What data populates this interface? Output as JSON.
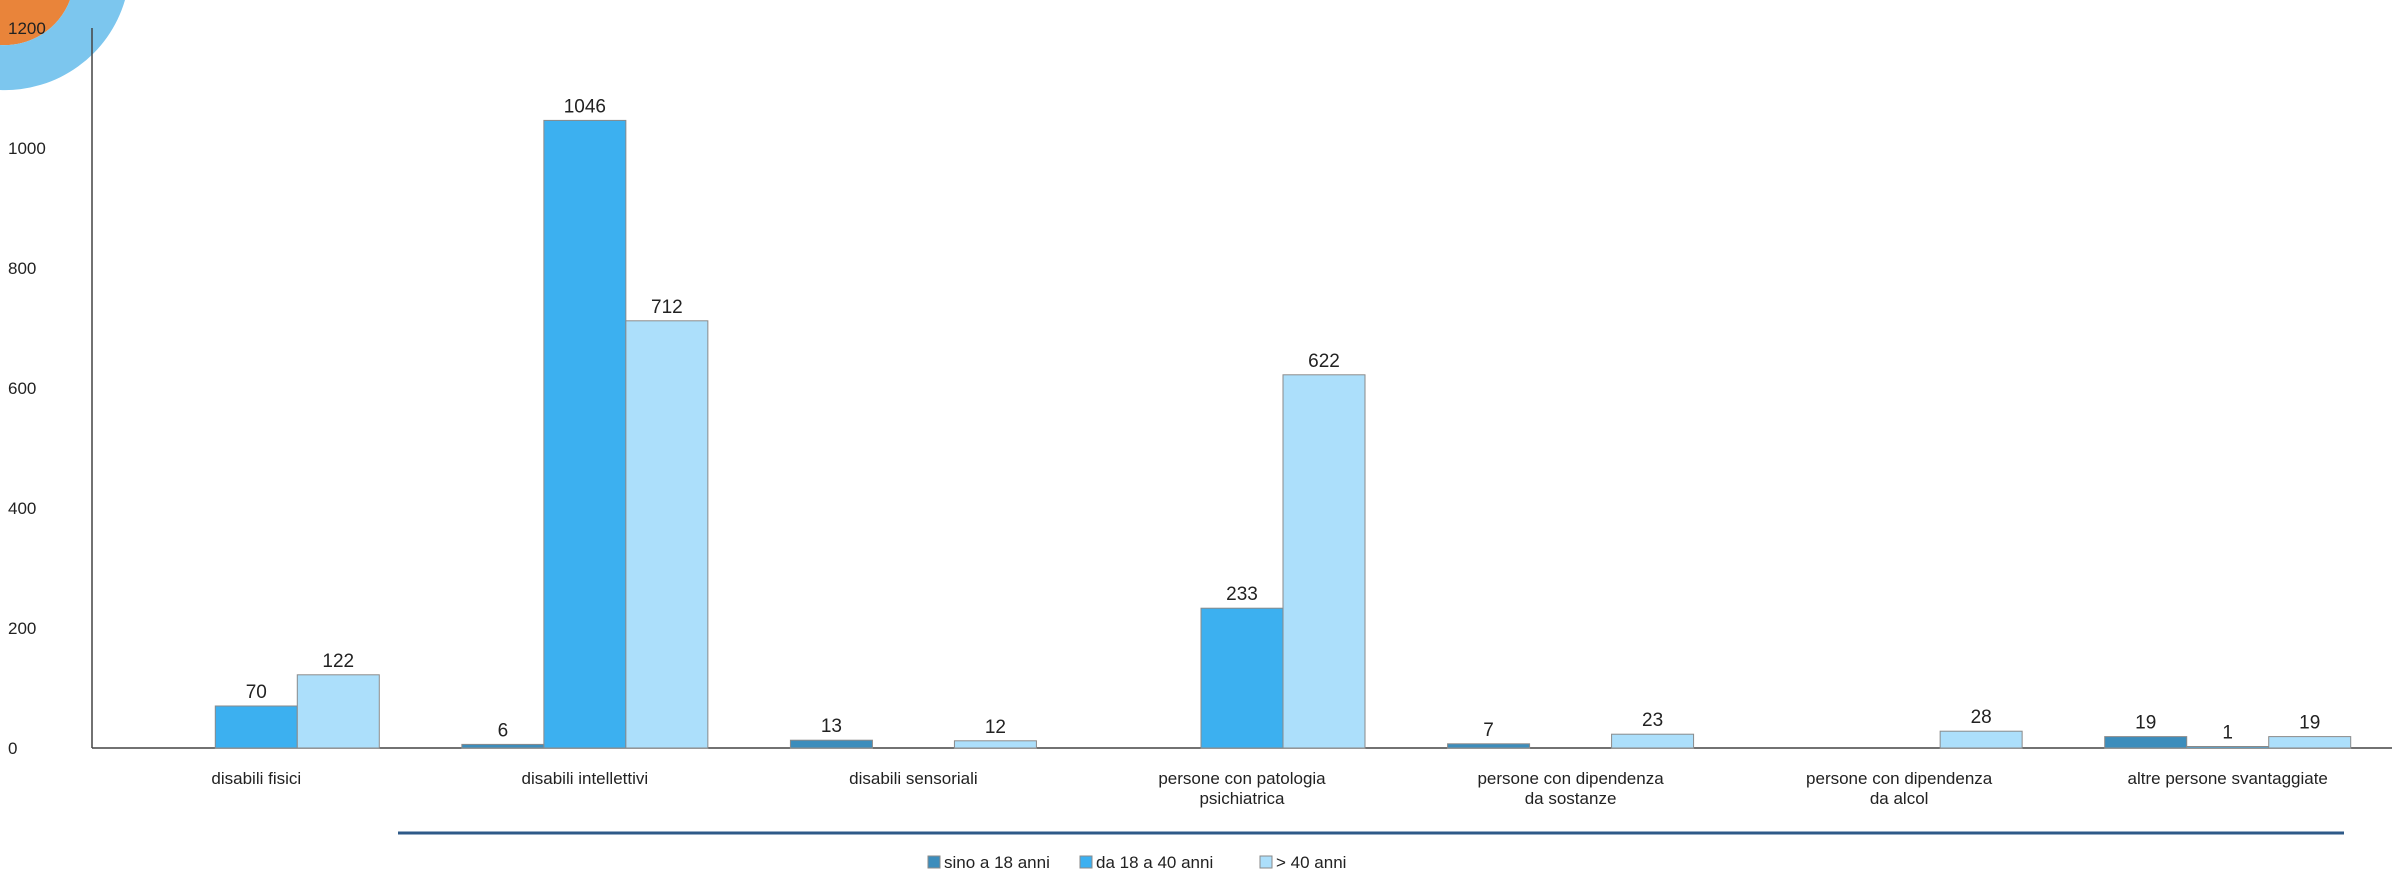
{
  "chart_data": {
    "type": "bar",
    "ylim": [
      0,
      1200
    ],
    "y_ticks": [
      0,
      200,
      400,
      600,
      800,
      1000,
      1200
    ],
    "grid": false,
    "legend_position": "bottom",
    "categories": [
      [
        "disabili fisici"
      ],
      [
        "disabili intellettivi"
      ],
      [
        "disabili sensoriali"
      ],
      [
        "persone con patologia",
        "psichiatrica"
      ],
      [
        "persone con dipendenza",
        "da sostanze"
      ],
      [
        "persone con dipendenza",
        "da alcol"
      ],
      [
        "altre persone svantaggiate"
      ]
    ],
    "series": [
      {
        "name": "sino a 18 anni",
        "color": "#3c8dbc",
        "values": [
          null,
          6,
          13,
          null,
          7,
          null,
          19
        ],
        "labels": [
          "",
          "6",
          "13",
          "",
          "7",
          "",
          "19"
        ]
      },
      {
        "name": "da 18 a 40 anni",
        "color": "#3cb0f0",
        "values": [
          70,
          1046,
          null,
          233,
          null,
          null,
          1
        ],
        "labels": [
          "70",
          "1046",
          "",
          "233",
          "",
          "",
          "1"
        ]
      },
      {
        "name": "> 40 anni",
        "color": "#acdffb",
        "values": [
          122,
          712,
          12,
          622,
          23,
          28,
          19
        ],
        "labels": [
          "122",
          "712",
          "12",
          "622",
          "23",
          "28",
          "19"
        ]
      }
    ]
  },
  "decor": {
    "corner_arc_colors": [
      "#e9843a",
      "#7cc6ee"
    ],
    "footer_rule_color": "#2e5a88"
  }
}
